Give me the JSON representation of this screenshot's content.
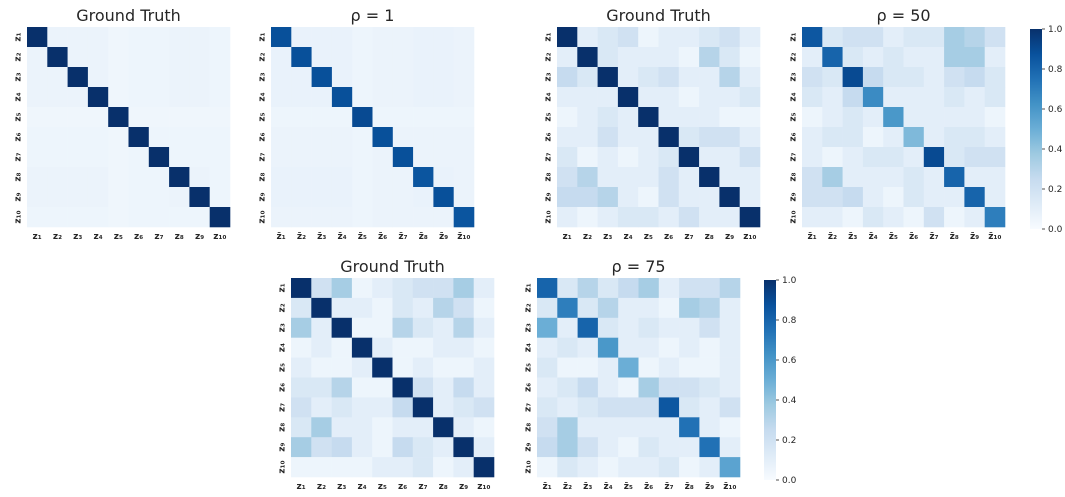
{
  "colorscale": {
    "low": "#f7fbff",
    "mid": "#6aaed6",
    "high": "#08306b"
  },
  "chart_data": [
    {
      "type": "heatmap",
      "title": "Ground Truth",
      "x_ticks": [
        "z₁",
        "z₂",
        "z₃",
        "z₄",
        "z₅",
        "z₆",
        "z₇",
        "z₈",
        "z₉",
        "z₁₀"
      ],
      "y_ticks": [
        "z₁",
        "z₂",
        "z₃",
        "z₄",
        "z₅",
        "z₆",
        "z₇",
        "z₈",
        "z₉",
        "z₁₀"
      ],
      "values": [
        [
          1,
          0.06,
          0.06,
          0.06,
          0.04,
          0.05,
          0.05,
          0.06,
          0.06,
          0.05
        ],
        [
          0.06,
          1,
          0.06,
          0.06,
          0.04,
          0.05,
          0.05,
          0.06,
          0.06,
          0.05
        ],
        [
          0.06,
          0.06,
          1,
          0.06,
          0.04,
          0.05,
          0.05,
          0.06,
          0.06,
          0.05
        ],
        [
          0.06,
          0.06,
          0.06,
          1,
          0.04,
          0.05,
          0.05,
          0.06,
          0.06,
          0.05
        ],
        [
          0.04,
          0.04,
          0.04,
          0.04,
          1,
          0.04,
          0.04,
          0.04,
          0.04,
          0.04
        ],
        [
          0.05,
          0.05,
          0.05,
          0.05,
          0.04,
          1,
          0.05,
          0.05,
          0.05,
          0.05
        ],
        [
          0.05,
          0.05,
          0.05,
          0.05,
          0.04,
          0.05,
          1,
          0.05,
          0.05,
          0.05
        ],
        [
          0.06,
          0.06,
          0.06,
          0.06,
          0.04,
          0.05,
          0.05,
          1,
          0.06,
          0.05
        ],
        [
          0.06,
          0.06,
          0.06,
          0.06,
          0.04,
          0.05,
          0.05,
          0.06,
          1,
          0.05
        ],
        [
          0.05,
          0.05,
          0.05,
          0.05,
          0.04,
          0.05,
          0.05,
          0.05,
          0.05,
          1
        ]
      ],
      "vmin": 0,
      "vmax": 1
    },
    {
      "type": "heatmap",
      "title": "ρ = 1",
      "x_ticks": [
        "z̄₁",
        "z̄₂",
        "z̄₃",
        "z̄₄",
        "z̄₅",
        "z̄₆",
        "z̄₇",
        "z̄₈",
        "z̄₉",
        "z̄₁₀"
      ],
      "y_ticks": [
        "z₁",
        "z₂",
        "z₃",
        "z₄",
        "z₅",
        "z₆",
        "z₇",
        "z₈",
        "z₉",
        "z₁₀"
      ],
      "values": [
        [
          0.88,
          0.07,
          0.07,
          0.07,
          0.05,
          0.06,
          0.06,
          0.07,
          0.07,
          0.06
        ],
        [
          0.07,
          0.88,
          0.07,
          0.07,
          0.05,
          0.06,
          0.06,
          0.07,
          0.07,
          0.06
        ],
        [
          0.07,
          0.07,
          0.88,
          0.07,
          0.05,
          0.06,
          0.06,
          0.07,
          0.07,
          0.06
        ],
        [
          0.07,
          0.07,
          0.07,
          0.88,
          0.05,
          0.06,
          0.06,
          0.07,
          0.07,
          0.06
        ],
        [
          0.05,
          0.05,
          0.05,
          0.05,
          0.9,
          0.05,
          0.05,
          0.05,
          0.05,
          0.05
        ],
        [
          0.06,
          0.06,
          0.06,
          0.06,
          0.05,
          0.88,
          0.06,
          0.06,
          0.06,
          0.06
        ],
        [
          0.06,
          0.06,
          0.06,
          0.06,
          0.05,
          0.06,
          0.88,
          0.06,
          0.06,
          0.06
        ],
        [
          0.07,
          0.07,
          0.07,
          0.07,
          0.05,
          0.06,
          0.06,
          0.86,
          0.07,
          0.06
        ],
        [
          0.07,
          0.07,
          0.07,
          0.07,
          0.05,
          0.06,
          0.06,
          0.07,
          0.88,
          0.06
        ],
        [
          0.06,
          0.06,
          0.06,
          0.06,
          0.05,
          0.06,
          0.06,
          0.06,
          0.06,
          0.86
        ]
      ],
      "vmin": 0,
      "vmax": 1
    },
    {
      "type": "heatmap",
      "title": "Ground Truth",
      "x_ticks": [
        "z₁",
        "z₂",
        "z₃",
        "z₄",
        "z₅",
        "z₆",
        "z₇",
        "z₈",
        "z₉",
        "z₁₀"
      ],
      "y_ticks": [
        "z₁",
        "z₂",
        "z₃",
        "z₄",
        "z₅",
        "z₆",
        "z₇",
        "z₈",
        "z₉",
        "z₁₀"
      ],
      "values": [
        [
          1,
          0.1,
          0.15,
          0.2,
          0.05,
          0.1,
          0.1,
          0.15,
          0.2,
          0.1
        ],
        [
          0.1,
          1,
          0.15,
          0.1,
          0.1,
          0.1,
          0.05,
          0.3,
          0.15,
          0.05
        ],
        [
          0.25,
          0.15,
          1,
          0.1,
          0.15,
          0.2,
          0.1,
          0.1,
          0.3,
          0.1
        ],
        [
          0.1,
          0.1,
          0.1,
          1,
          0.1,
          0.1,
          0.05,
          0.1,
          0.1,
          0.15
        ],
        [
          0.05,
          0.1,
          0.15,
          0.1,
          1,
          0.1,
          0.1,
          0.1,
          0.05,
          0.05
        ],
        [
          0.1,
          0.1,
          0.2,
          0.1,
          0.1,
          1,
          0.15,
          0.2,
          0.2,
          0.1
        ],
        [
          0.15,
          0.05,
          0.1,
          0.05,
          0.1,
          0.15,
          1,
          0.1,
          0.1,
          0.2
        ],
        [
          0.2,
          0.3,
          0.1,
          0.1,
          0.1,
          0.2,
          0.1,
          1,
          0.1,
          0.1
        ],
        [
          0.25,
          0.25,
          0.3,
          0.1,
          0.05,
          0.2,
          0.1,
          0.1,
          1,
          0.1
        ],
        [
          0.1,
          0.05,
          0.1,
          0.15,
          0.15,
          0.1,
          0.2,
          0.1,
          0.1,
          1
        ]
      ],
      "vmin": 0,
      "vmax": 1
    },
    {
      "type": "heatmap",
      "title": "ρ = 50",
      "x_ticks": [
        "z̄₁",
        "z̄₂",
        "z̄₃",
        "z̄₄",
        "z̄₅",
        "z̄₆",
        "z̄₇",
        "z̄₈",
        "z̄₉",
        "z̄₁₀"
      ],
      "y_ticks": [
        "z₁",
        "z₂",
        "z₃",
        "z₄",
        "z₅",
        "z₆",
        "z₇",
        "z₈",
        "z₉",
        "z₁₀"
      ],
      "values": [
        [
          0.85,
          0.15,
          0.2,
          0.2,
          0.1,
          0.15,
          0.15,
          0.35,
          0.3,
          0.2
        ],
        [
          0.1,
          0.8,
          0.15,
          0.1,
          0.15,
          0.1,
          0.1,
          0.35,
          0.35,
          0.1
        ],
        [
          0.2,
          0.15,
          0.9,
          0.25,
          0.15,
          0.15,
          0.1,
          0.2,
          0.25,
          0.15
        ],
        [
          0.15,
          0.1,
          0.25,
          0.65,
          0.1,
          0.1,
          0.1,
          0.15,
          0.1,
          0.15
        ],
        [
          0.05,
          0.1,
          0.15,
          0.1,
          0.6,
          0.1,
          0.1,
          0.1,
          0.1,
          0.05
        ],
        [
          0.1,
          0.15,
          0.15,
          0.05,
          0.1,
          0.45,
          0.1,
          0.15,
          0.15,
          0.1
        ],
        [
          0.1,
          0.05,
          0.1,
          0.15,
          0.15,
          0.1,
          0.9,
          0.15,
          0.2,
          0.2
        ],
        [
          0.2,
          0.35,
          0.1,
          0.1,
          0.1,
          0.15,
          0.1,
          0.8,
          0.1,
          0.1
        ],
        [
          0.2,
          0.2,
          0.25,
          0.1,
          0.05,
          0.15,
          0.1,
          0.1,
          0.8,
          0.1
        ],
        [
          0.1,
          0.1,
          0.05,
          0.15,
          0.1,
          0.05,
          0.2,
          0.05,
          0.1,
          0.7
        ]
      ],
      "vmin": 0,
      "vmax": 1
    },
    {
      "type": "heatmap",
      "title": "Ground Truth",
      "x_ticks": [
        "z₁",
        "z₂",
        "z₃",
        "z₄",
        "z₅",
        "z₆",
        "z₇",
        "z₈",
        "z₉",
        "z₁₀"
      ],
      "y_ticks": [
        "z₁",
        "z₂",
        "z₃",
        "z₄",
        "z₅",
        "z₆",
        "z₇",
        "z₈",
        "z₉",
        "z₁₀"
      ],
      "values": [
        [
          1,
          0.2,
          0.35,
          0.05,
          0.1,
          0.15,
          0.2,
          0.2,
          0.35,
          0.1
        ],
        [
          0.15,
          1,
          0.1,
          0.1,
          0.05,
          0.15,
          0.1,
          0.3,
          0.2,
          0.05
        ],
        [
          0.35,
          0.1,
          1,
          0.05,
          0.05,
          0.3,
          0.15,
          0.1,
          0.3,
          0.1
        ],
        [
          0.05,
          0.1,
          0.05,
          1,
          0.1,
          0.05,
          0.05,
          0.1,
          0.1,
          0.05
        ],
        [
          0.1,
          0.05,
          0.05,
          0.1,
          1,
          0.05,
          0.1,
          0.05,
          0.05,
          0.1
        ],
        [
          0.15,
          0.15,
          0.3,
          0.05,
          0.05,
          1,
          0.2,
          0.1,
          0.25,
          0.1
        ],
        [
          0.2,
          0.1,
          0.15,
          0.1,
          0.1,
          0.25,
          1,
          0.1,
          0.15,
          0.2
        ],
        [
          0.15,
          0.35,
          0.1,
          0.1,
          0.05,
          0.1,
          0.1,
          1,
          0.1,
          0.05
        ],
        [
          0.35,
          0.2,
          0.25,
          0.1,
          0.05,
          0.25,
          0.15,
          0.1,
          1,
          0.1
        ],
        [
          0.05,
          0.05,
          0.05,
          0.05,
          0.1,
          0.1,
          0.15,
          0.05,
          0.1,
          1
        ]
      ],
      "vmin": 0,
      "vmax": 1
    },
    {
      "type": "heatmap",
      "title": "ρ = 75",
      "x_ticks": [
        "z̄₁",
        "z̄₂",
        "z̄₃",
        "z̄₄",
        "z̄₅",
        "z̄₆",
        "z̄₇",
        "z̄₈",
        "z̄₉",
        "z̄₁₀"
      ],
      "y_ticks": [
        "z₁",
        "z₂",
        "z₃",
        "z₄",
        "z₅",
        "z₆",
        "z₇",
        "z₈",
        "z₉",
        "z₁₀"
      ],
      "values": [
        [
          0.8,
          0.15,
          0.3,
          0.15,
          0.25,
          0.35,
          0.1,
          0.2,
          0.2,
          0.3
        ],
        [
          0.15,
          0.7,
          0.15,
          0.3,
          0.1,
          0.1,
          0.05,
          0.35,
          0.3,
          0.1
        ],
        [
          0.5,
          0.1,
          0.8,
          0.15,
          0.1,
          0.15,
          0.1,
          0.1,
          0.2,
          0.1
        ],
        [
          0.1,
          0.15,
          0.1,
          0.6,
          0.1,
          0.1,
          0.05,
          0.1,
          0.05,
          0.1
        ],
        [
          0.15,
          0.05,
          0.05,
          0.1,
          0.5,
          0.05,
          0.1,
          0.05,
          0.05,
          0.1
        ],
        [
          0.1,
          0.15,
          0.25,
          0.1,
          0.05,
          0.35,
          0.2,
          0.2,
          0.15,
          0.1
        ],
        [
          0.15,
          0.1,
          0.15,
          0.2,
          0.2,
          0.2,
          0.85,
          0.15,
          0.1,
          0.2
        ],
        [
          0.2,
          0.35,
          0.1,
          0.1,
          0.1,
          0.1,
          0.1,
          0.75,
          0.1,
          0.05
        ],
        [
          0.25,
          0.35,
          0.2,
          0.1,
          0.05,
          0.15,
          0.1,
          0.1,
          0.75,
          0.1
        ],
        [
          0.05,
          0.15,
          0.1,
          0.05,
          0.1,
          0.1,
          0.15,
          0.05,
          0.1,
          0.55
        ]
      ],
      "vmin": 0,
      "vmax": 1
    }
  ],
  "colorbars": [
    {
      "ticks": [
        "0.0",
        "0.2",
        "0.4",
        "0.6",
        "0.8",
        "1.0"
      ]
    },
    {
      "ticks": [
        "0.0",
        "0.2",
        "0.4",
        "0.6",
        "0.8",
        "1.0"
      ]
    }
  ]
}
